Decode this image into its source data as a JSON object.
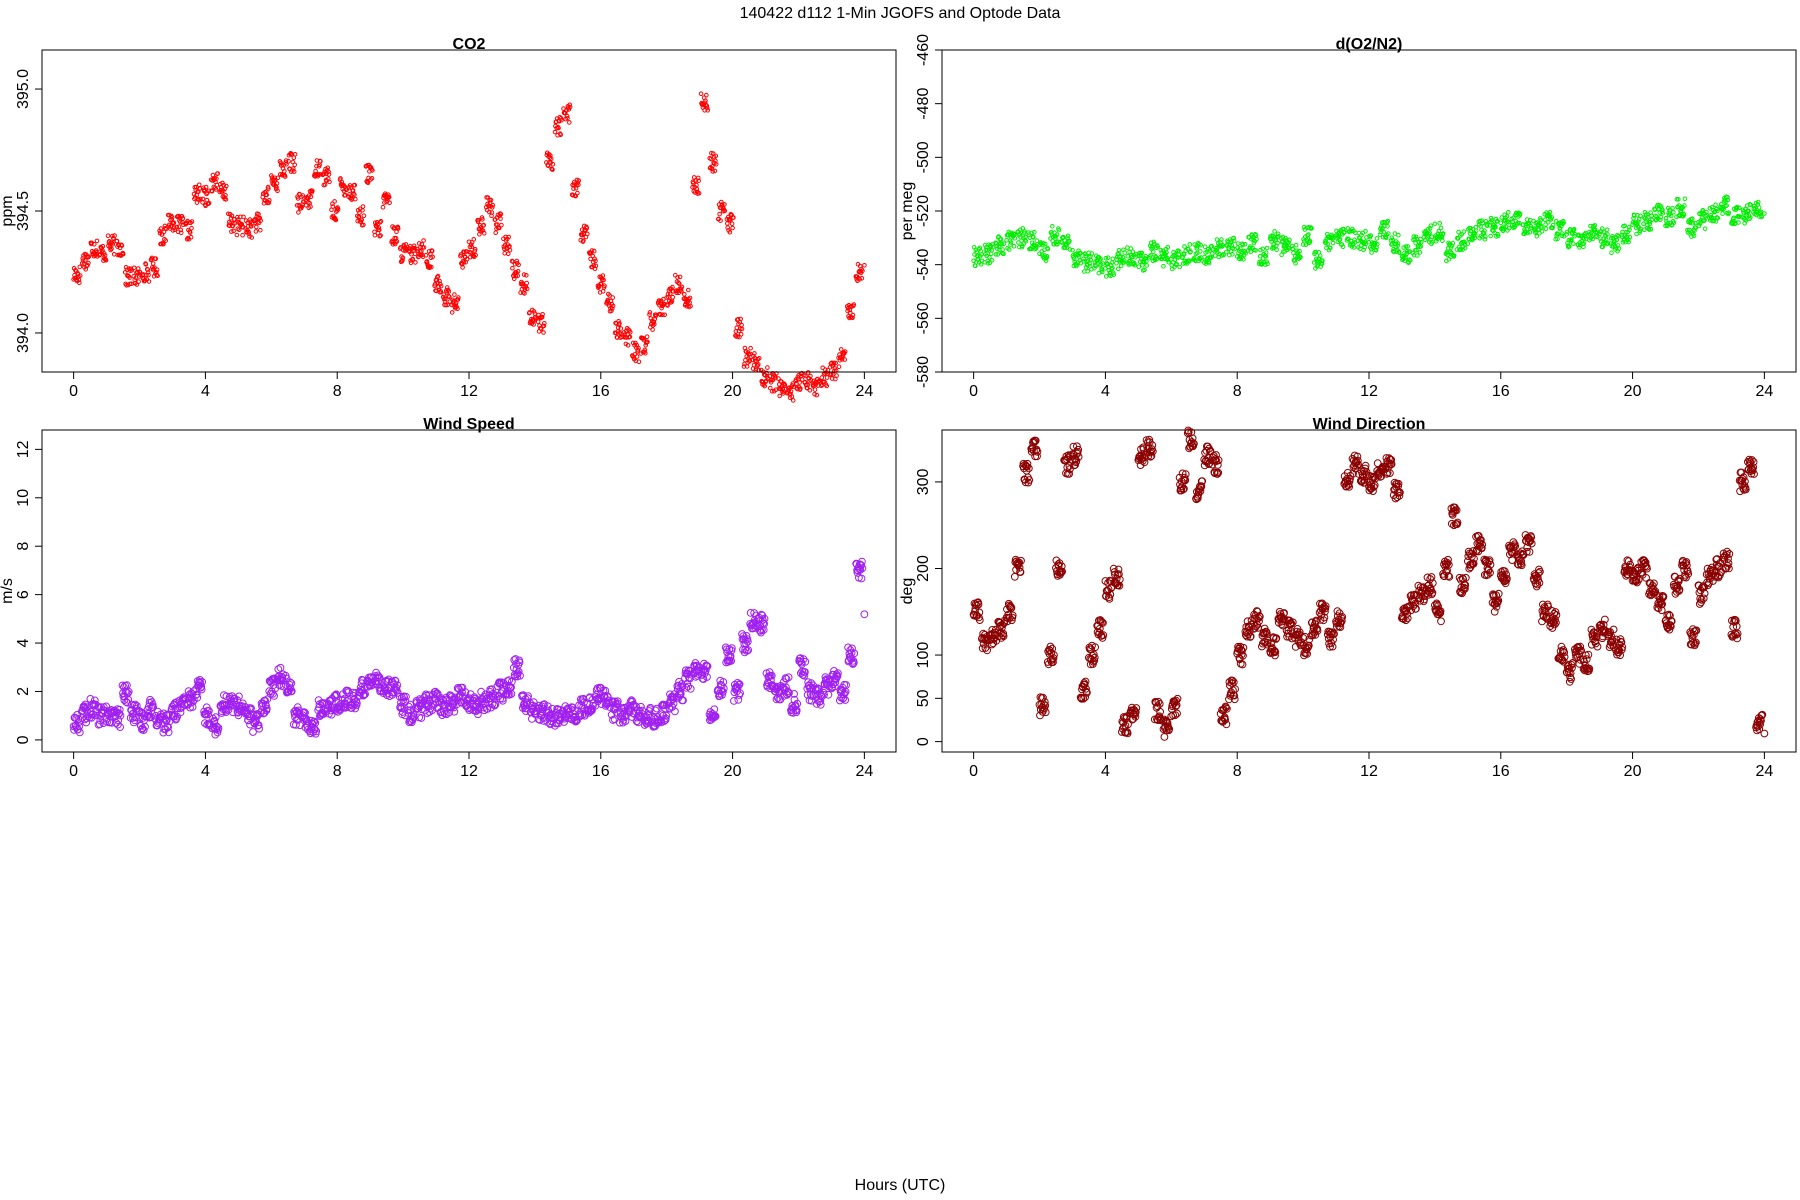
{
  "title": "140422   d112   1-Min  JGOFS and Optode Data",
  "xlabel": "Hours (UTC)",
  "chart_data": [
    {
      "type": "scatter",
      "title": "CO2",
      "ylabel": "ppm",
      "color": "#ff0000",
      "marker_radius": 1.8,
      "xlim": [
        -0.96,
        24.96
      ],
      "ylim": [
        393.84,
        395.16
      ],
      "xticks": [
        0,
        4,
        8,
        12,
        16,
        20,
        24
      ],
      "yticks": [
        394.0,
        394.5,
        395.0
      ],
      "ytick_labels": [
        "394.0",
        "394.5",
        "395.0"
      ],
      "series": [
        {
          "points_per_hour": 60,
          "x_start": 0,
          "y": [
            394.24,
            394.3,
            394.35,
            394.33,
            394.36,
            394.35,
            394.23,
            394.23,
            394.25,
            394.27,
            394.4,
            394.46,
            394.44,
            394.42,
            394.57,
            394.56,
            394.62,
            394.58,
            394.45,
            394.44,
            394.43,
            394.45,
            394.56,
            394.62,
            394.67,
            394.7,
            394.53,
            394.55,
            394.68,
            394.64,
            394.5,
            394.6,
            394.58,
            394.48,
            394.65,
            394.42,
            394.55,
            394.4,
            394.33,
            394.32,
            394.35,
            394.3,
            394.2,
            394.15,
            394.12,
            394.3,
            394.35,
            394.44,
            394.52,
            394.45,
            394.36,
            394.26,
            394.2,
            394.07,
            394.04,
            394.7,
            394.85,
            394.9,
            394.6,
            394.4,
            394.3,
            394.2,
            394.12,
            394.02,
            393.98,
            393.92,
            393.95,
            394.05,
            394.1,
            394.15,
            394.2,
            394.14,
            394.6,
            394.95,
            394.7,
            394.5,
            394.45,
            394.02,
            393.9,
            393.88,
            393.82,
            393.8,
            393.78,
            393.76,
            393.8,
            393.8,
            393.78,
            393.82,
            393.85,
            393.9,
            394.1,
            394.25,
            394.3
          ]
        }
      ]
    },
    {
      "type": "scatter",
      "title": "d(O2/N2)",
      "ylabel": "per meg",
      "color": "#00ee00",
      "marker_radius": 1.8,
      "xlim": [
        -0.96,
        24.96
      ],
      "ylim": [
        -580,
        -460
      ],
      "xticks": [
        0,
        4,
        8,
        12,
        16,
        20,
        24
      ],
      "yticks": [
        -580,
        -560,
        -540,
        -520,
        -500,
        -480,
        -460
      ],
      "ytick_labels": [
        "-580",
        "-560",
        "-540",
        "-520",
        "-500",
        "-480",
        "-460"
      ],
      "series": [
        {
          "points_per_hour": 60,
          "x_start": 0,
          "y": [
            -537,
            -536,
            -533,
            -531,
            -530,
            -531,
            -535,
            -529,
            -532,
            -537,
            -539,
            -540,
            -541,
            -538,
            -537,
            -539,
            -535,
            -537,
            -538,
            -536,
            -535,
            -536,
            -534,
            -533,
            -535,
            -532,
            -537,
            -531,
            -533,
            -536,
            -529,
            -538,
            -532,
            -530,
            -530,
            -531,
            -532,
            -527,
            -532,
            -536,
            -533,
            -529,
            -528,
            -535,
            -531,
            -529,
            -527,
            -526,
            -524,
            -523,
            -525,
            -526,
            -523,
            -527,
            -530,
            -531,
            -528,
            -530,
            -532,
            -529,
            -525,
            -524,
            -520,
            -522,
            -519,
            -526,
            -523,
            -521,
            -518,
            -522,
            -521,
            -520,
            -519
          ]
        }
      ]
    },
    {
      "type": "scatter",
      "title": "Wind Speed",
      "ylabel": "m/s",
      "color": "#a020f0",
      "marker_radius": 3.4,
      "xlim": [
        -0.96,
        24.96
      ],
      "ylim": [
        -0.5,
        12.8
      ],
      "xticks": [
        0,
        4,
        8,
        12,
        16,
        20,
        24
      ],
      "yticks": [
        0,
        2,
        4,
        6,
        8,
        10,
        12
      ],
      "ytick_labels": [
        "0",
        "2",
        "4",
        "6",
        "8",
        "10",
        "12"
      ],
      "series": [
        {
          "points_per_hour": 60,
          "x_start": 0,
          "y": [
            0.7,
            1.1,
            1.3,
            1.0,
            1.1,
            0.9,
            1.9,
            1.1,
            0.8,
            1.3,
            0.9,
            0.7,
            1.2,
            1.4,
            1.7,
            2.1,
            1.0,
            0.6,
            1.5,
            1.5,
            1.4,
            1.0,
            0.7,
            1.4,
            2.2,
            2.6,
            2.3,
            1.0,
            0.8,
            0.6,
            1.3,
            1.4,
            1.5,
            1.7,
            1.6,
            2.1,
            2.5,
            2.4,
            2.2,
            2.1,
            1.4,
            1.1,
            1.3,
            1.5,
            1.6,
            1.4,
            1.5,
            1.8,
            1.6,
            1.4,
            1.6,
            1.7,
            2.0,
            2.1,
            3.0,
            1.5,
            1.2,
            1.1,
            1.0,
            0.9,
            1.0,
            1.1,
            1.3,
            1.5,
            1.8,
            1.7,
            1.2,
            1.1,
            1.3,
            1.0,
            1.0,
            0.9,
            1.1,
            1.5,
            2.0,
            2.5,
            3.0,
            2.8,
            1.2,
            2.2,
            3.5,
            2.0,
            4.0,
            5.0,
            4.8,
            2.5,
            2.0,
            2.2,
            1.5,
            3.0,
            2.0,
            1.8,
            2.2,
            2.5,
            2.0,
            3.5,
            7.0,
            5.0
          ]
        }
      ]
    },
    {
      "type": "scatter",
      "title": "Wind Direction",
      "ylabel": "deg",
      "color": "#8b0000",
      "marker_radius": 3.4,
      "xlim": [
        -0.96,
        24.96
      ],
      "ylim": [
        -12,
        360
      ],
      "xticks": [
        0,
        4,
        8,
        12,
        16,
        20,
        24
      ],
      "yticks": [
        0,
        50,
        100,
        200,
        300
      ],
      "ytick_labels": [
        "0",
        "50",
        "100",
        "200",
        "300"
      ],
      "series": [
        {
          "points_per_hour": 60,
          "x_start": 0,
          "y": [
            150,
            115,
            120,
            130,
            150,
            200,
            310,
            340,
            40,
            100,
            200,
            320,
            330,
            60,
            100,
            130,
            175,
            190,
            20,
            30,
            330,
            340,
            35,
            15,
            40,
            300,
            350,
            290,
            330,
            320,
            30,
            60,
            100,
            130,
            140,
            120,
            110,
            140,
            130,
            120,
            110,
            130,
            150,
            120,
            140,
            300,
            320,
            310,
            300,
            315,
            320,
            290,
            150,
            160,
            170,
            180,
            150,
            200,
            260,
            180,
            210,
            230,
            200,
            160,
            190,
            220,
            210,
            230,
            190,
            150,
            140,
            100,
            80,
            100,
            90,
            120,
            130,
            120,
            110,
            200,
            190,
            200,
            180,
            160,
            140,
            180,
            200,
            120,
            170,
            190,
            200,
            210,
            130,
            300,
            320,
            20,
            10
          ]
        }
      ]
    }
  ]
}
